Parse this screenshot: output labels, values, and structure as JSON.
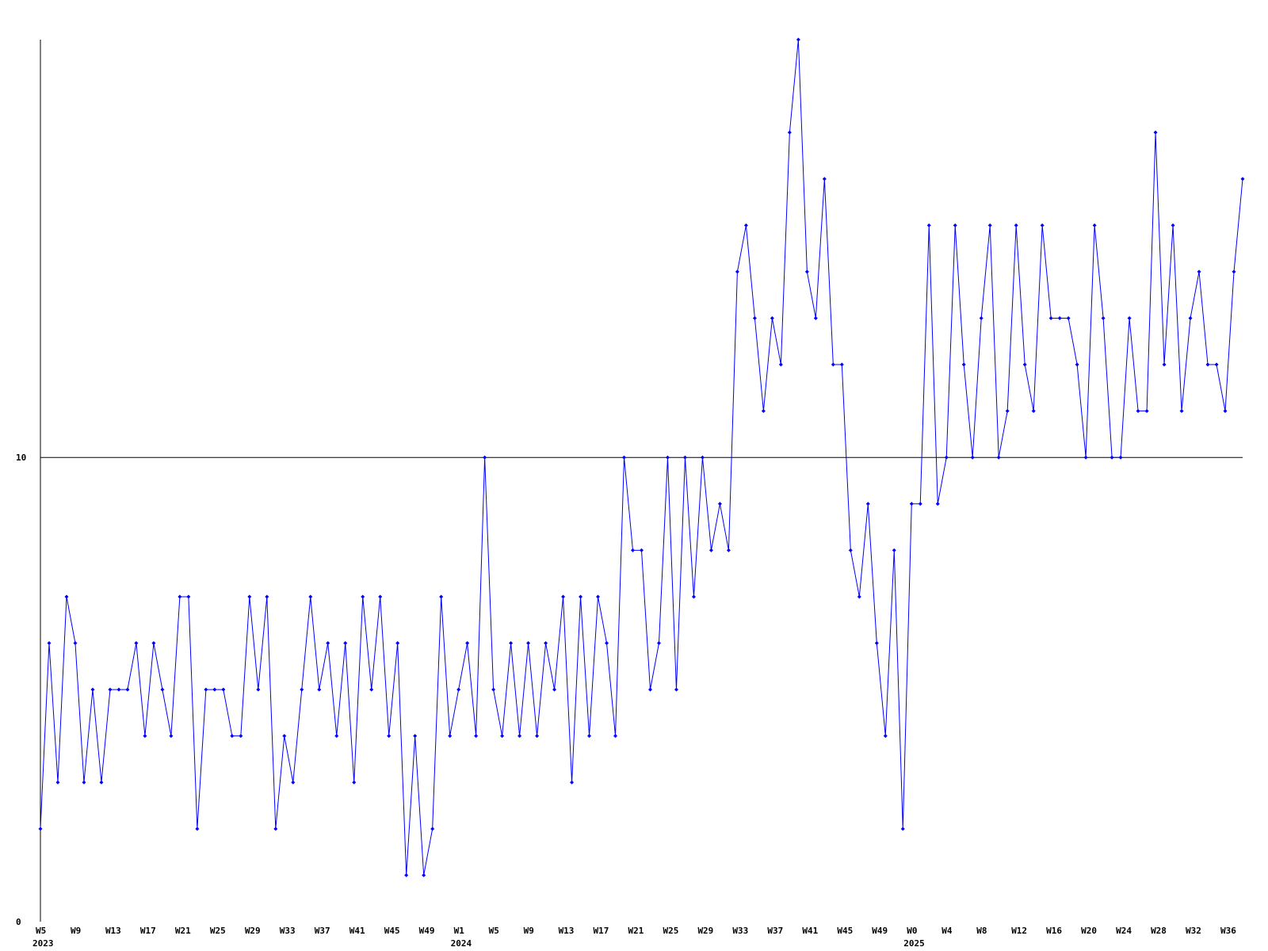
{
  "chart_data": {
    "type": "line",
    "categories": [
      "W5",
      null,
      null,
      null,
      "W9",
      null,
      null,
      null,
      "W13",
      null,
      null,
      null,
      "W17",
      null,
      null,
      null,
      "W21",
      null,
      null,
      null,
      "W25",
      null,
      null,
      null,
      "W29",
      null,
      null,
      null,
      "W33",
      null,
      null,
      null,
      "W37",
      null,
      null,
      null,
      "W41",
      null,
      null,
      null,
      "W45",
      null,
      null,
      null,
      "W49",
      null,
      null,
      null,
      "W1",
      null,
      null,
      null,
      "W5",
      null,
      null,
      null,
      "W9",
      null,
      null,
      null,
      "W13",
      null,
      null,
      null,
      "W17",
      null,
      null,
      null,
      "W21",
      null,
      null,
      null,
      "W25",
      null,
      null,
      null,
      "W29",
      null,
      null,
      null,
      "W33",
      null,
      null,
      null,
      "W37",
      null,
      null,
      null,
      "W41",
      null,
      null,
      null,
      "W45",
      null,
      null,
      null,
      "W49",
      null,
      null,
      null,
      "W0",
      null,
      null,
      null,
      "W4",
      null,
      null,
      null,
      "W8",
      null,
      null,
      null,
      "W12",
      null,
      null,
      null,
      "W16",
      null,
      null,
      null,
      "W20",
      null,
      null,
      null,
      "W24",
      null,
      null,
      null,
      "W28",
      null,
      null,
      null,
      "W32",
      null,
      null,
      null,
      "W36",
      null,
      null
    ],
    "year_labels": [
      {
        "value": 0,
        "label": "2023"
      },
      {
        "value": 48,
        "label": "2024"
      },
      {
        "value": 100,
        "label": "2025"
      }
    ],
    "series": [
      {
        "color": "#0000ff",
        "values": [
          2,
          6,
          3,
          7,
          6,
          3,
          5,
          3,
          5,
          5,
          5,
          6,
          4,
          6,
          5,
          4,
          7,
          7,
          2,
          5,
          5,
          5,
          4,
          4,
          7,
          5,
          7,
          2,
          4,
          3,
          5,
          7,
          5,
          6,
          4,
          6,
          3,
          7,
          5,
          7,
          4,
          6,
          1,
          4,
          1,
          2,
          7,
          4,
          5,
          6,
          4,
          10,
          5,
          4,
          6,
          4,
          6,
          4,
          6,
          5,
          7,
          3,
          7,
          4,
          7,
          6,
          4,
          10,
          8,
          8,
          5,
          6,
          10,
          5,
          10,
          7,
          10,
          8,
          9,
          8,
          14,
          15,
          13,
          11,
          13,
          12,
          17,
          19,
          14,
          13,
          16,
          12,
          12,
          8,
          7,
          9,
          6,
          4,
          8,
          2,
          9,
          9,
          15,
          9,
          10,
          15,
          12,
          10,
          13,
          15,
          10,
          11,
          15,
          12,
          11,
          15,
          13,
          13,
          13,
          12,
          10,
          15,
          13,
          10,
          10,
          13,
          11,
          11,
          17,
          12,
          15,
          11,
          13,
          14,
          12,
          12,
          11,
          14,
          16
        ]
      }
    ],
    "ylim": [
      0,
      19
    ],
    "yticks": [
      0,
      10
    ],
    "grid": true
  }
}
